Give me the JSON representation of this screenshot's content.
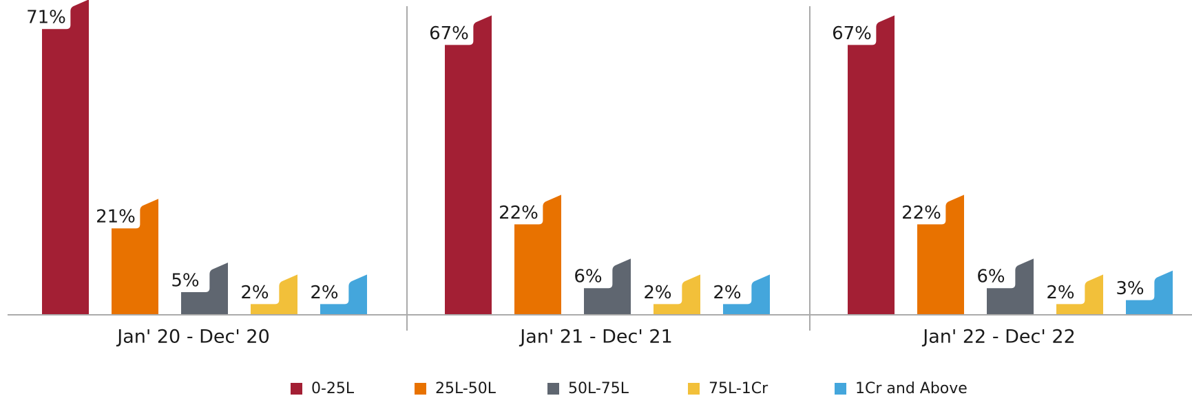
{
  "chart_data": {
    "type": "bar",
    "categories": [
      "Jan' 20 - Dec' 20",
      "Jan' 21 - Dec' 21",
      "Jan' 22 - Dec' 22"
    ],
    "series": [
      {
        "name": "0-25L",
        "color": "#a31f34",
        "values": [
          71,
          67,
          67
        ],
        "value_labels": [
          "71%",
          "67%",
          "67%"
        ]
      },
      {
        "name": "25L-50L",
        "color": "#e87200",
        "values": [
          21,
          22,
          22
        ],
        "value_labels": [
          "21%",
          "22%",
          "22%"
        ]
      },
      {
        "name": "50L-75L",
        "color": "#5f6670",
        "values": [
          5,
          6,
          6
        ],
        "value_labels": [
          "5%",
          "6%",
          "6%"
        ]
      },
      {
        "name": "75L-1Cr",
        "color": "#f2c03a",
        "values": [
          2,
          2,
          2
        ],
        "value_labels": [
          "2%",
          "2%",
          "2%"
        ]
      },
      {
        "name": "1Cr and Above",
        "color": "#44a6dc",
        "values": [
          2,
          2,
          3
        ],
        "value_labels": [
          "2%",
          "2%",
          "3%"
        ]
      }
    ],
    "legend": "bottom"
  }
}
